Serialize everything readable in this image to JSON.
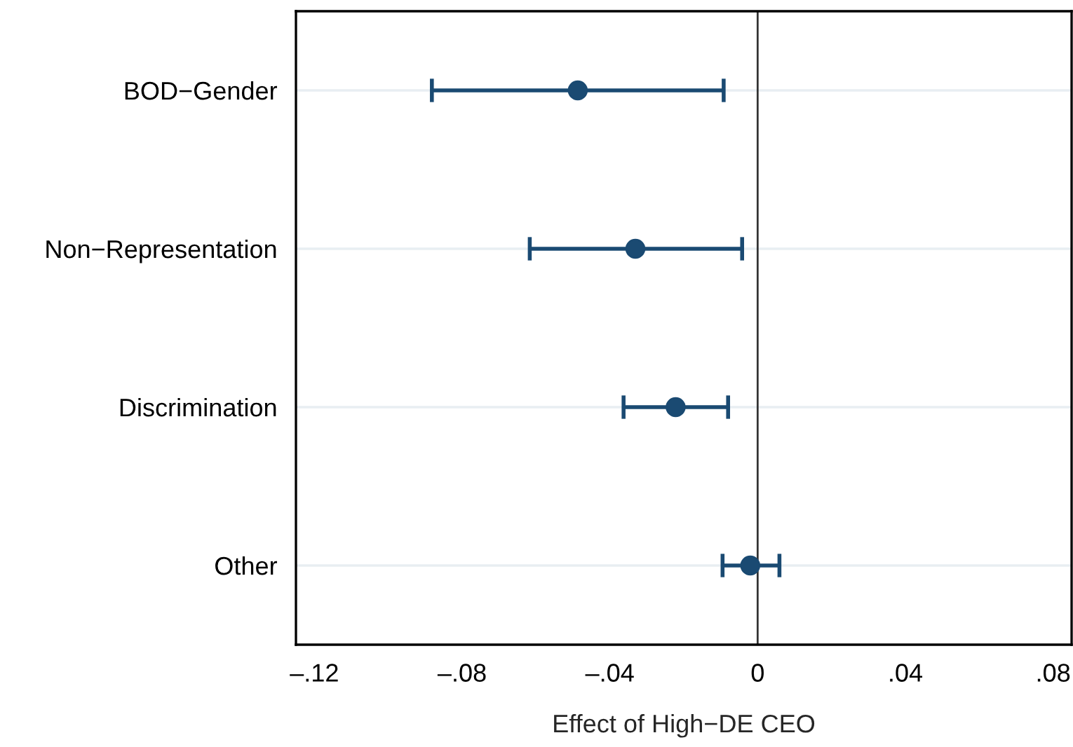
{
  "chart_data": {
    "type": "scatter",
    "orientation": "horizontal",
    "xlabel": "Effect of High−DE CEO",
    "categories": [
      "BOD−Gender",
      "Non−Representation",
      "Discrimination",
      "Other"
    ],
    "values": [
      -0.0487,
      -0.0331,
      -0.0222,
      -0.002
    ],
    "errors": [
      [
        -0.0882,
        -0.0092
      ],
      [
        -0.0617,
        -0.0042
      ],
      [
        -0.0363,
        -0.008
      ],
      [
        -0.0095,
        0.0059
      ]
    ],
    "color": "#1a4a72",
    "marker": "circle",
    "xlim": [
      -0.125,
      0.085
    ],
    "xticks": [
      {
        "value": -0.12,
        "label": "–.12"
      },
      {
        "value": -0.08,
        "label": "–.08"
      },
      {
        "value": -0.04,
        "label": "–.04"
      },
      0,
      {
        "value": 0.04,
        "label": ".04"
      },
      {
        "value": 0.08,
        "label": ".08"
      }
    ],
    "ref_lines": [
      {
        "axis": "x",
        "value": 0,
        "color": "#333333"
      }
    ],
    "grid": "y",
    "legend": false
  }
}
